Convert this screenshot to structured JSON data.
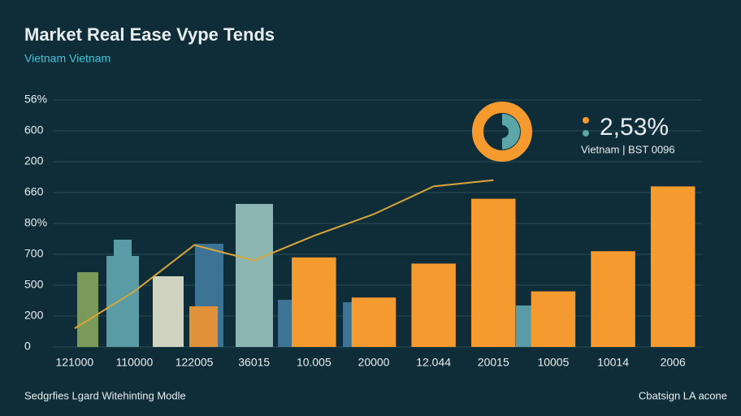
{
  "chart_data": {
    "type": "bar",
    "title": "Market Real Ease Vype Tends",
    "subtitle": "Vietnam Vietnam",
    "categories": [
      "121000",
      "110000",
      "122005",
      "36015",
      "10.005",
      "20000",
      "12.044",
      "20015",
      "10005",
      "10014",
      "2006"
    ],
    "series": [
      {
        "color": "#f59a2f",
        "values": [
          null,
          null,
          null,
          null,
          2.9,
          1.6,
          2.7,
          4.8,
          1.8,
          3.1,
          5.2
        ]
      },
      {
        "type": "line",
        "color": "#d9a53a",
        "values": [
          0.6,
          1.8,
          3.3,
          2.8,
          3.6,
          4.3,
          5.2,
          5.4,
          null,
          null,
          null
        ]
      }
    ],
    "ylim": [
      0,
      8
    ],
    "yticks": [
      0,
      {
        "value": 1,
        "label": "200"
      },
      {
        "value": 2,
        "label": "500"
      },
      {
        "value": 3,
        "label": "700"
      },
      {
        "value": 4,
        "label": "80%"
      },
      {
        "value": 5,
        "label": "660"
      },
      {
        "value": 6,
        "label": "200"
      },
      {
        "value": 7,
        "label": "600"
      },
      {
        "value": 8,
        "label": "56%"
      }
    ],
    "grid": true,
    "annotation": "2,53%",
    "annotation_caption": "Vietnam | BST 0096",
    "footer_left": "Sedgrfies Lgard Witehinting Modle",
    "footer_right": "Cbatsign LA acone"
  }
}
